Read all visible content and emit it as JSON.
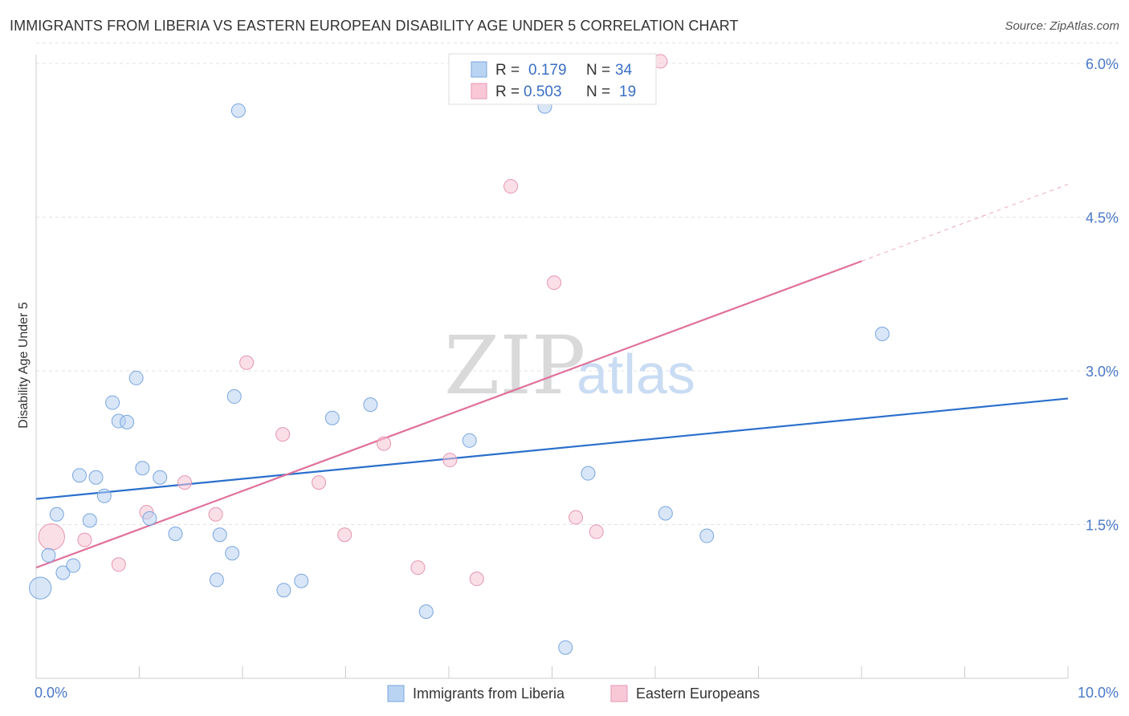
{
  "header": {
    "title": "IMMIGRANTS FROM LIBERIA VS EASTERN EUROPEAN DISABILITY AGE UNDER 5 CORRELATION CHART",
    "source": "Source: ZipAtlas.com"
  },
  "watermark": {
    "zip": "ZIP",
    "atlas": "atlas"
  },
  "stats": [
    {
      "r_label": "R =",
      "r_value": "0.179",
      "n_label": "N =",
      "n_value": "34"
    },
    {
      "r_label": "R =",
      "r_value": "0.503",
      "n_label": "N =",
      "n_value": "19"
    }
  ],
  "chart_data": {
    "type": "scatter",
    "title": "IMMIGRANTS FROM LIBERIA VS EASTERN EUROPEAN DISABILITY AGE UNDER 5 CORRELATION CHART",
    "xlabel": "",
    "ylabel": "Disability Age Under 5",
    "xlim": [
      0,
      10
    ],
    "ylim": [
      0,
      6.3
    ],
    "x_tick_labels": [
      "0.0%",
      "10.0%"
    ],
    "y_ticks": [
      1.5,
      3.0,
      4.5,
      6.0
    ],
    "y_tick_labels": [
      "1.5%",
      "3.0%",
      "4.5%",
      "6.0%"
    ],
    "grid": "horizontal dashed",
    "legend_position": "bottom-center",
    "colors": {
      "liberia": "#a8c8f0",
      "liberia_line": "#2a6fcc",
      "eastern": "#f6b8cc",
      "eastern_line": "#e0709a"
    },
    "series": [
      {
        "name": "Immigrants from Liberia",
        "color": "#a8c8f0",
        "points": [
          {
            "x": 0.04,
            "y": 0.88,
            "s": 1.6
          },
          {
            "x": 0.12,
            "y": 1.2
          },
          {
            "x": 0.2,
            "y": 1.6
          },
          {
            "x": 0.26,
            "y": 1.03
          },
          {
            "x": 0.36,
            "y": 1.1
          },
          {
            "x": 0.42,
            "y": 1.98
          },
          {
            "x": 0.52,
            "y": 1.54
          },
          {
            "x": 0.58,
            "y": 1.96
          },
          {
            "x": 0.66,
            "y": 1.78
          },
          {
            "x": 0.74,
            "y": 2.69
          },
          {
            "x": 0.8,
            "y": 2.51
          },
          {
            "x": 0.88,
            "y": 2.5
          },
          {
            "x": 0.97,
            "y": 2.93
          },
          {
            "x": 1.03,
            "y": 2.05
          },
          {
            "x": 1.1,
            "y": 1.56
          },
          {
            "x": 1.2,
            "y": 1.96
          },
          {
            "x": 1.35,
            "y": 1.41
          },
          {
            "x": 1.75,
            "y": 0.96
          },
          {
            "x": 1.78,
            "y": 1.4
          },
          {
            "x": 1.9,
            "y": 1.22
          },
          {
            "x": 1.92,
            "y": 2.75
          },
          {
            "x": 1.96,
            "y": 5.54
          },
          {
            "x": 2.4,
            "y": 0.86
          },
          {
            "x": 2.57,
            "y": 0.95
          },
          {
            "x": 2.87,
            "y": 2.54
          },
          {
            "x": 3.24,
            "y": 2.67
          },
          {
            "x": 3.78,
            "y": 0.65
          },
          {
            "x": 4.2,
            "y": 2.32
          },
          {
            "x": 4.93,
            "y": 5.58
          },
          {
            "x": 5.13,
            "y": 0.3
          },
          {
            "x": 5.35,
            "y": 2.0
          },
          {
            "x": 6.1,
            "y": 1.61
          },
          {
            "x": 6.5,
            "y": 1.39
          },
          {
            "x": 8.2,
            "y": 3.36
          }
        ]
      },
      {
        "name": "Eastern Europeans",
        "color": "#f6b8cc",
        "points": [
          {
            "x": 0.15,
            "y": 1.38,
            "s": 1.9
          },
          {
            "x": 0.47,
            "y": 1.35
          },
          {
            "x": 0.8,
            "y": 1.11
          },
          {
            "x": 1.07,
            "y": 1.62
          },
          {
            "x": 1.44,
            "y": 1.91
          },
          {
            "x": 1.74,
            "y": 1.6
          },
          {
            "x": 2.04,
            "y": 3.08
          },
          {
            "x": 2.39,
            "y": 2.38
          },
          {
            "x": 2.74,
            "y": 1.91
          },
          {
            "x": 2.99,
            "y": 1.4
          },
          {
            "x": 3.37,
            "y": 2.29
          },
          {
            "x": 3.7,
            "y": 1.08
          },
          {
            "x": 4.01,
            "y": 2.13
          },
          {
            "x": 4.27,
            "y": 0.97
          },
          {
            "x": 4.6,
            "y": 4.8
          },
          {
            "x": 5.02,
            "y": 3.86
          },
          {
            "x": 5.23,
            "y": 1.57
          },
          {
            "x": 5.43,
            "y": 1.43
          },
          {
            "x": 6.05,
            "y": 6.02
          }
        ]
      }
    ],
    "trendlines": [
      {
        "series": "Immigrants from Liberia",
        "x": [
          0,
          10
        ],
        "y": [
          1.75,
          2.73
        ],
        "style": "solid"
      },
      {
        "series": "Eastern Europeans",
        "x": [
          0,
          8.0
        ],
        "y": [
          1.08,
          4.07
        ],
        "style": "solid"
      },
      {
        "series": "Eastern Europeans",
        "x": [
          8.0,
          10
        ],
        "y": [
          4.07,
          4.82
        ],
        "style": "dashed"
      }
    ]
  },
  "legend": {
    "items": [
      {
        "label": "Immigrants from Liberia",
        "color": "#a8c8f0",
        "border": "#7aa6de"
      },
      {
        "label": "Eastern Europeans",
        "color": "#f6c4d4",
        "border": "#e596b1"
      }
    ]
  }
}
